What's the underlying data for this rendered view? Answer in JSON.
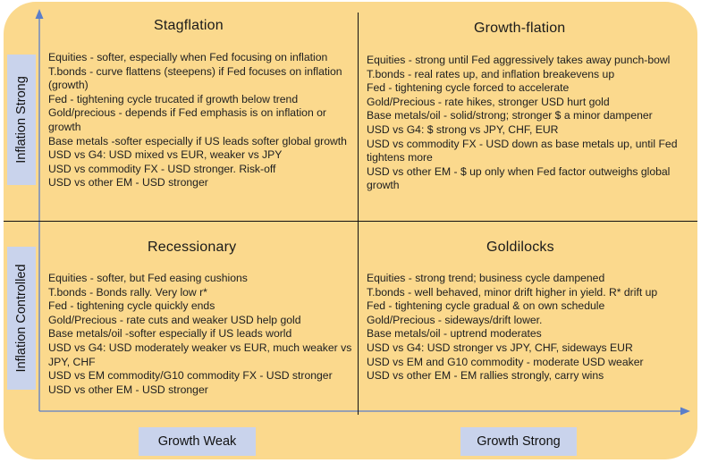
{
  "quadrants": {
    "top_left": {
      "title": "Stagflation",
      "items": [
        "Equities - softer, especially when Fed focusing on inflation",
        "T.bonds - curve flattens (steepens) if Fed focuses on inflation (growth)",
        "Fed - tightening cycle trucated if growth below trend",
        "Gold/precious - depends if Fed emphasis is on inflation or growth",
        "Base metals  -softer especially if US leads softer global growth",
        "USD vs G4:   USD mixed vs EUR, weaker vs JPY",
        "USD vs commodity FX - USD stronger. Risk-off",
        "USD vs other EM - USD stronger"
      ]
    },
    "top_right": {
      "title": "Growth-flation",
      "items": [
        "Equities - strong until Fed aggressively takes away punch-bowl",
        "T.bonds - real rates up, and inflation breakevens up",
        "Fed - tightening cycle forced to accelerate",
        "Gold/Precious - rate hikes, stronger USD hurt gold",
        "Base metals/oil - solid/strong; stronger $ a minor dampener",
        "USD vs G4:  $ strong vs JPY, CHF, EUR",
        "USD vs   commodity FX -  USD down as base metals up, until Fed tightens more",
        "USD vs other EM -  $ up only when Fed factor outweighs global growth"
      ]
    },
    "bottom_left": {
      "title": "Recessionary",
      "items": [
        "Equities - softer, but Fed easing cushions",
        "T.bonds - Bonds rally. Very low r*",
        "Fed - tightening cycle quickly ends",
        "Gold/Precious - rate cuts and weaker USD help  gold",
        "Base metals/oil -softer especially if US leads world",
        "USD vs G4:    USD moderately weaker vs EUR,  much weaker vs JPY, CHF",
        "USD vs EM commodity/G10 commodity FX - USD stronger",
        "USD vs other EM - USD stronger"
      ]
    },
    "bottom_right": {
      "title": "Goldilocks",
      "items": [
        "Equities - strong trend; business cycle dampened",
        "T.bonds - well behaved, minor drift higher in yield. R* drift up",
        "Fed - tightening cycle gradual & on own schedule",
        "Gold/Precious - sideways/drift lower.",
        "Base metals/oil  - uptrend moderates",
        "USD vs G4: USD stronger vs JPY, CHF, sideways EUR",
        "USD vs EM and G10 commodity - moderate USD weaker",
        "USD vs other EM -  EM rallies strongly, carry wins"
      ]
    }
  },
  "axes": {
    "y_top_label": "Inflation Strong",
    "y_bottom_label": "Inflation Controlled",
    "x_left_label": "Growth Weak",
    "x_right_label": "Growth Strong"
  },
  "colors": {
    "background": "#fbd98d",
    "axis_label_box": "#c9d3ec",
    "axis_arrow": "#5b7ec9"
  }
}
